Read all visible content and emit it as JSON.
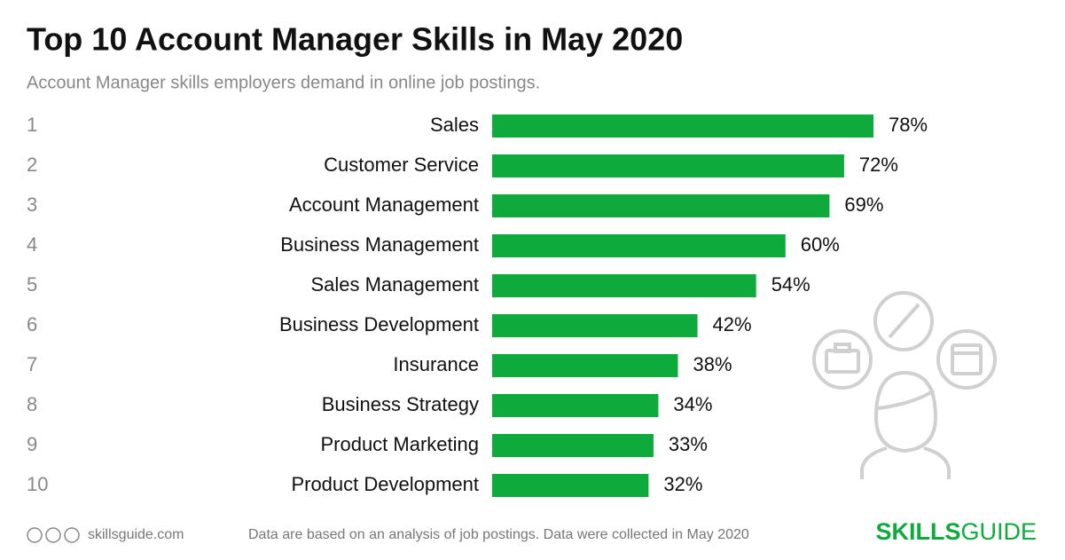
{
  "chart_data": {
    "type": "bar",
    "orientation": "horizontal",
    "title": "Top 10 Account Manager Skills in May 2020",
    "subtitle": "Account Manager skills employers demand in online job postings.",
    "ranks": [
      1,
      2,
      3,
      4,
      5,
      6,
      7,
      8,
      9,
      10
    ],
    "categories": [
      "Sales",
      "Customer Service",
      "Account Management",
      "Business Management",
      "Sales Management",
      "Business Development",
      "Insurance",
      "Business Strategy",
      "Product Marketing",
      "Product Development"
    ],
    "values": [
      78,
      72,
      69,
      60,
      54,
      42,
      38,
      34,
      33,
      32
    ],
    "value_labels": [
      "78%",
      "72%",
      "69%",
      "60%",
      "54%",
      "42%",
      "38%",
      "34%",
      "33%",
      "32%"
    ],
    "color": "#0eaa3c"
  },
  "footer": {
    "site": "skillsguide.com",
    "note": "Data are based on an analysis of job postings. Data were collected in May 2020",
    "brand_bold": "SKILLS",
    "brand_light": "GUIDE"
  }
}
